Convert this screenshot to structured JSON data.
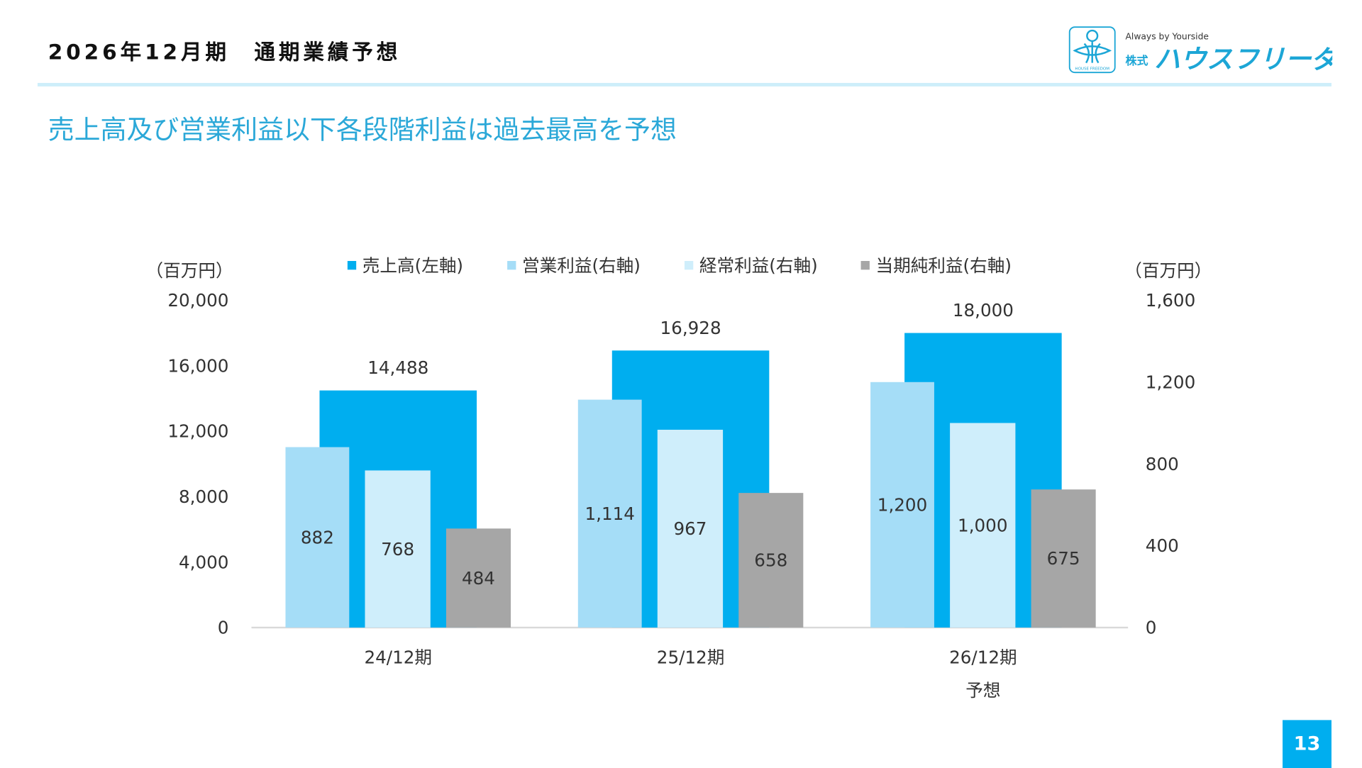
{
  "header": {
    "title": "2026年12月期　通期業績予想",
    "subtitle": "売上高及び営業利益以下各段階利益は過去最高を予想"
  },
  "logo": {
    "tagline": "Always by Yourside",
    "company_prefix": "株式会社",
    "company_name": "ハウスフリーダム",
    "mark_text": "HOUSE FREEDOM"
  },
  "page_number": "13",
  "chart_data": {
    "type": "bar",
    "categories": [
      "24/12期",
      "25/12期",
      "26/12期"
    ],
    "category_sublabels": [
      "",
      "",
      "予想"
    ],
    "left_unit": "（百万円）",
    "right_unit": "（百万円）",
    "left_ylim": [
      0,
      20000
    ],
    "left_ticks": [
      "0",
      "4,000",
      "8,000",
      "12,000",
      "16,000",
      "20,000"
    ],
    "right_ylim": [
      0,
      1600
    ],
    "right_ticks": [
      "0",
      "400",
      "800",
      "1,200",
      "1,600"
    ],
    "legend_position": "top",
    "grid": false,
    "series": [
      {
        "name": "売上高(左軸)",
        "axis": "left",
        "color": "#00AEEF",
        "values": [
          14488,
          16928,
          18000
        ],
        "labels": [
          "14,488",
          "16,928",
          "18,000"
        ]
      },
      {
        "name": "営業利益(右軸)",
        "axis": "right",
        "color": "#A5DDF7",
        "values": [
          882,
          1114,
          1200
        ],
        "labels": [
          "882",
          "1,114",
          "1,200"
        ]
      },
      {
        "name": "経常利益(右軸)",
        "axis": "right",
        "color": "#CFEEFB",
        "values": [
          768,
          967,
          1000
        ],
        "labels": [
          "768",
          "967",
          "1,000"
        ]
      },
      {
        "name": "当期純利益(右軸)",
        "axis": "right",
        "color": "#A6A6A6",
        "values": [
          484,
          658,
          675
        ],
        "labels": [
          "484",
          "658",
          "675"
        ]
      }
    ]
  }
}
